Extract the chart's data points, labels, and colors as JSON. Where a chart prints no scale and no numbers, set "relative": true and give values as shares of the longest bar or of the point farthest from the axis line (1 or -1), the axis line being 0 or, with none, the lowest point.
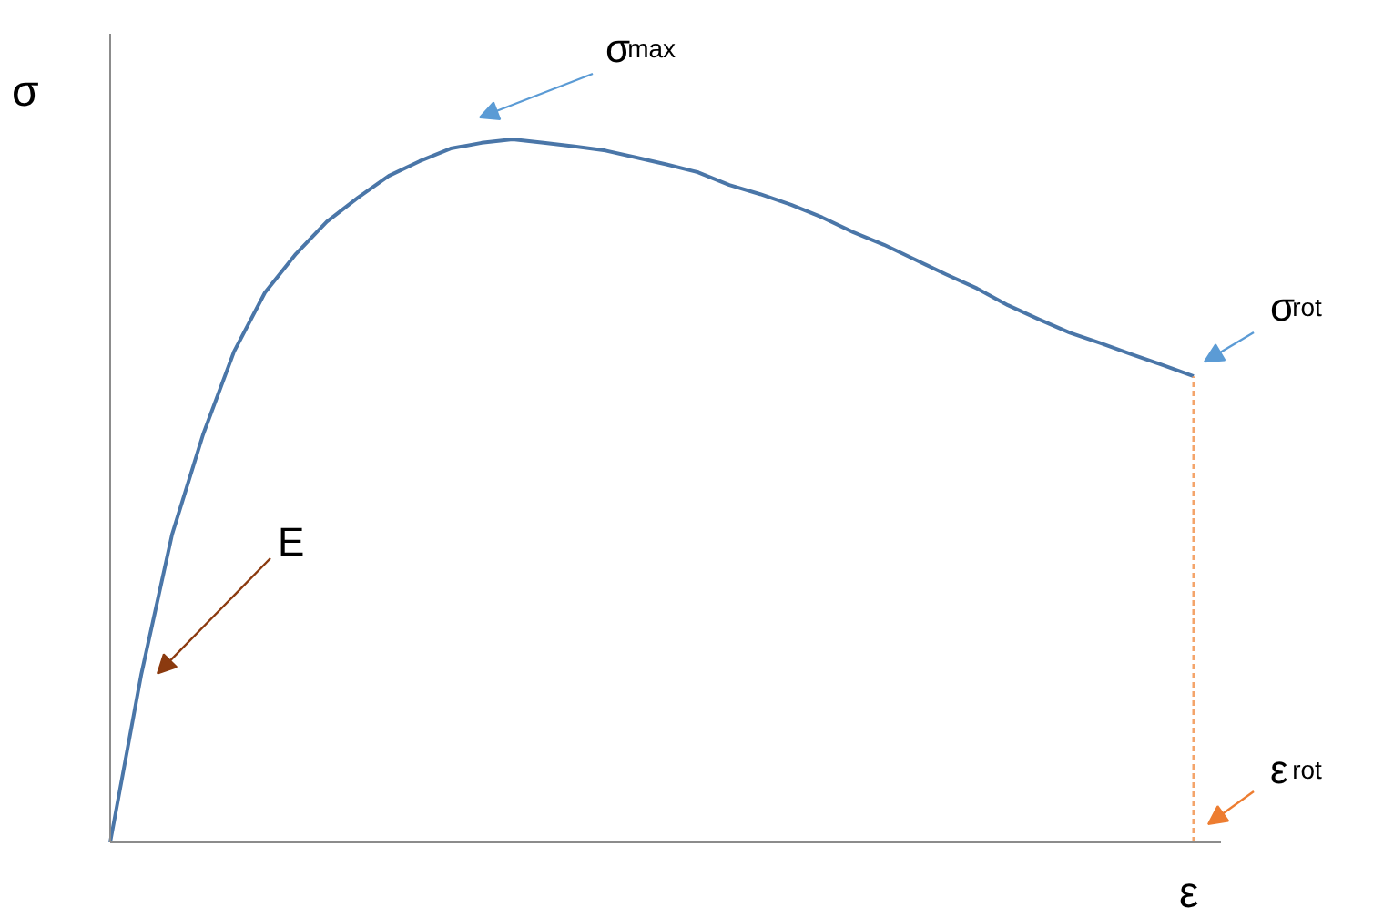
{
  "chart_data": {
    "type": "line",
    "relative": true,
    "xlabel": "ε",
    "ylabel": "σ",
    "categories": [
      null,
      null,
      null,
      null,
      null,
      null,
      null,
      null,
      null,
      null,
      null,
      null,
      null,
      null,
      null,
      null,
      null,
      null,
      null,
      null,
      null,
      null,
      null,
      null,
      null,
      null,
      null,
      null,
      null,
      null,
      null,
      null,
      null,
      null,
      null,
      null
    ],
    "series": [
      {
        "color": "#4a76a8",
        "values": [
          0,
          0.238,
          0.438,
          0.58,
          0.698,
          0.782,
          0.837,
          0.883,
          0.917,
          0.948,
          0.969,
          0.987,
          0.995,
          1.0,
          0.995,
          0.99,
          0.984,
          0.974,
          0.964,
          0.953,
          0.935,
          0.922,
          0.907,
          0.889,
          0.868,
          0.85,
          0.829,
          0.808,
          0.788,
          0.764,
          0.744,
          0.725,
          0.71,
          0.694,
          0.679,
          0.663
        ]
      }
    ],
    "annotations": [
      "σ$_{max}$",
      "σ$_{rot}$",
      "E",
      "ε$_{rot}$"
    ]
  }
}
